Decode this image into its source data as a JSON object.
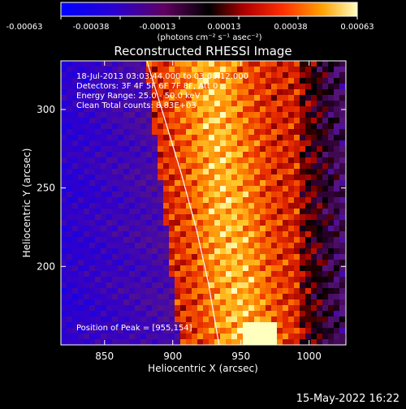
{
  "chart_data": {
    "type": "heatmap",
    "title": "Reconstructed RHESSI Image",
    "xlabel": "Heliocentric X (arcsec)",
    "ylabel": "Heliocentric Y (arcsec)",
    "xlim": [
      818,
      1027
    ],
    "ylim": [
      150,
      331
    ],
    "x_ticks": [
      850,
      900,
      950,
      1000
    ],
    "y_ticks": [
      200,
      250,
      300
    ],
    "colorbar": {
      "ticks": [
        "-0.00063",
        "-0.00038",
        "-0.00013",
        "0.00013",
        "0.00038",
        "0.00063"
      ],
      "units_label": "(photons cm⁻² s⁻¹ asec⁻²)",
      "range": [
        -0.00063,
        0.00063
      ]
    },
    "annotations": {
      "time_range": "18-Jul-2013 03:03:44.000 to 03:08:12.000",
      "detectors": "Detectors: 3F 4F 5F 6F 7F 8F, Att 0",
      "energy_range": "Energy Range: 25.0 - 50.0 keV",
      "clean": "Clean     Total counts: 8.83E+03",
      "peak": "Position of Peak = [955,154]"
    },
    "limb_curve": {
      "points": [
        [
          881,
          331
        ],
        [
          892,
          300
        ],
        [
          906,
          260
        ],
        [
          917,
          225
        ],
        [
          926,
          190
        ],
        [
          934,
          150
        ]
      ]
    }
  },
  "footer": {
    "date": "15-May-2022 16:22"
  },
  "colors": {
    "background": "#000000",
    "text": "#ffffff"
  }
}
